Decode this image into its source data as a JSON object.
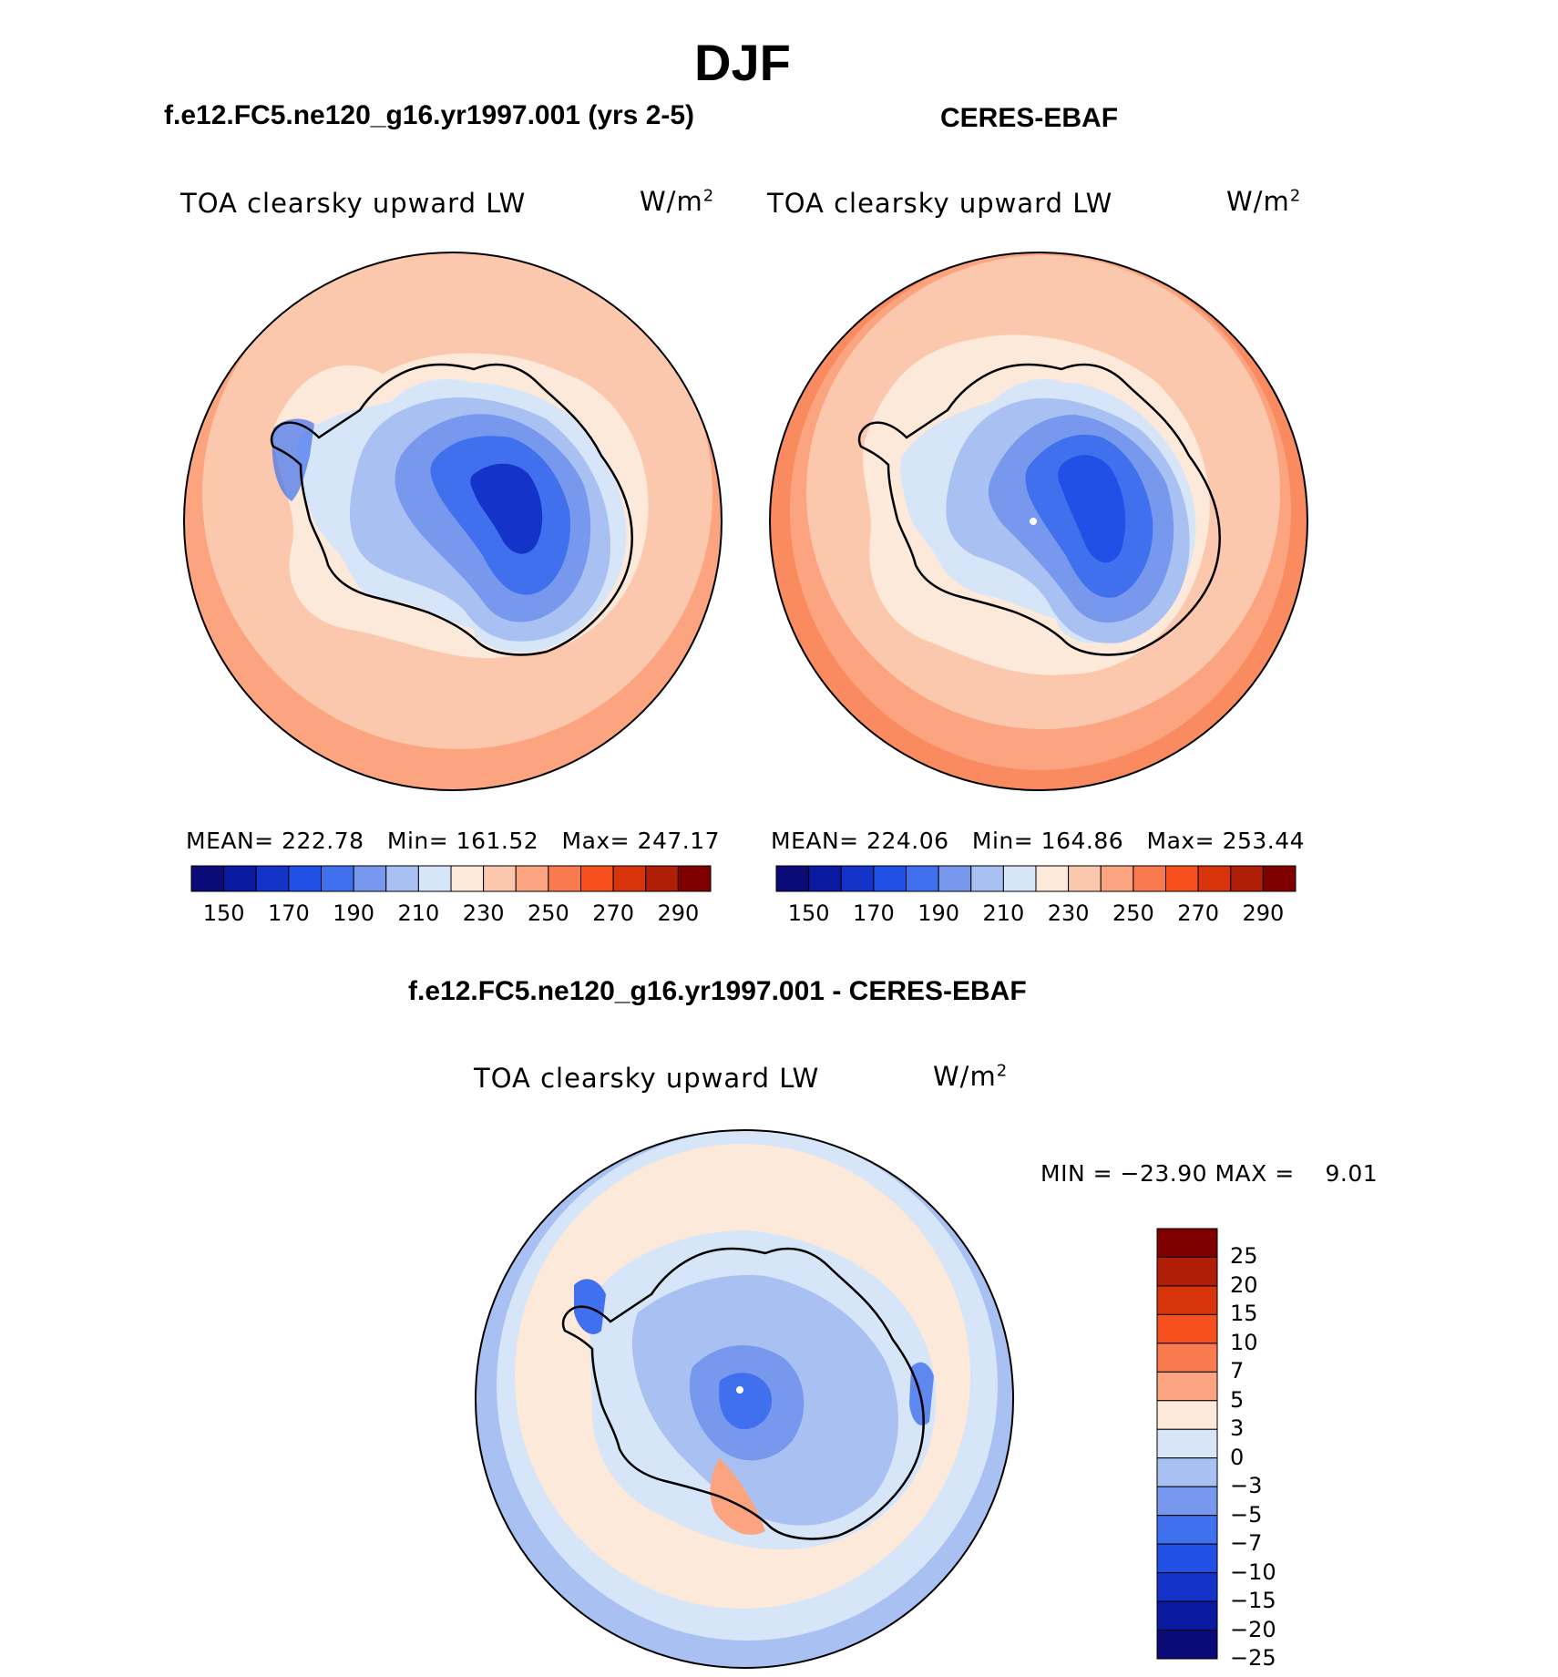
{
  "figure": {
    "title": "DJF"
  },
  "panels": {
    "model": {
      "title": "f.e12.FC5.ne120_g16.yr1997.001 (yrs 2-5)",
      "variable": "TOA clearsky upward LW",
      "units": "W/m",
      "units_sup": "2",
      "stats": {
        "mean_label": "MEAN=",
        "mean": "222.78",
        "min_label": "Min=",
        "min": "161.52",
        "max_label": "Max=",
        "max": "247.17"
      }
    },
    "obs": {
      "title": "CERES-EBAF",
      "variable": "TOA clearsky upward LW",
      "units": "W/m",
      "units_sup": "2",
      "stats": {
        "mean_label": "MEAN=",
        "mean": "224.06",
        "min_label": "Min=",
        "min": "164.86",
        "max_label": "Max=",
        "max": "253.44"
      }
    },
    "diff": {
      "title": "f.e12.FC5.ne120_g16.yr1997.001 - CERES-EBAF",
      "variable": "TOA clearsky upward LW",
      "units": "W/m",
      "units_sup": "2",
      "stats": {
        "min_label": "MIN =",
        "min": "−23.90",
        "max_label": "MAX =",
        "max": "9.01"
      }
    }
  },
  "colorbars": {
    "absolute": {
      "colors": [
        "#0a0a78",
        "#0a1aa0",
        "#1433c8",
        "#2050e6",
        "#4070ee",
        "#7898ee",
        "#a9c1f2",
        "#d6e6f8",
        "#fde9da",
        "#fcc8ad",
        "#fca47f",
        "#fa7a50",
        "#f5501e",
        "#d8340c",
        "#b01e08",
        "#800000"
      ],
      "labels": [
        "150",
        "170",
        "190",
        "210",
        "230",
        "250",
        "270",
        "290"
      ]
    },
    "difference": {
      "colors": [
        "#800000",
        "#b01e08",
        "#d8340c",
        "#f5501e",
        "#fa7a50",
        "#fca47f",
        "#fde9da",
        "#d6e6f8",
        "#a9c1f2",
        "#7898ee",
        "#4070ee",
        "#2050e6",
        "#1433c8",
        "#0a1aa0",
        "#0a0a78"
      ],
      "labels": [
        "25",
        "20",
        "15",
        "10",
        "7",
        "5",
        "3",
        "0",
        "−3",
        "−5",
        "−7",
        "−10",
        "−15",
        "−20",
        "−25"
      ]
    }
  }
}
